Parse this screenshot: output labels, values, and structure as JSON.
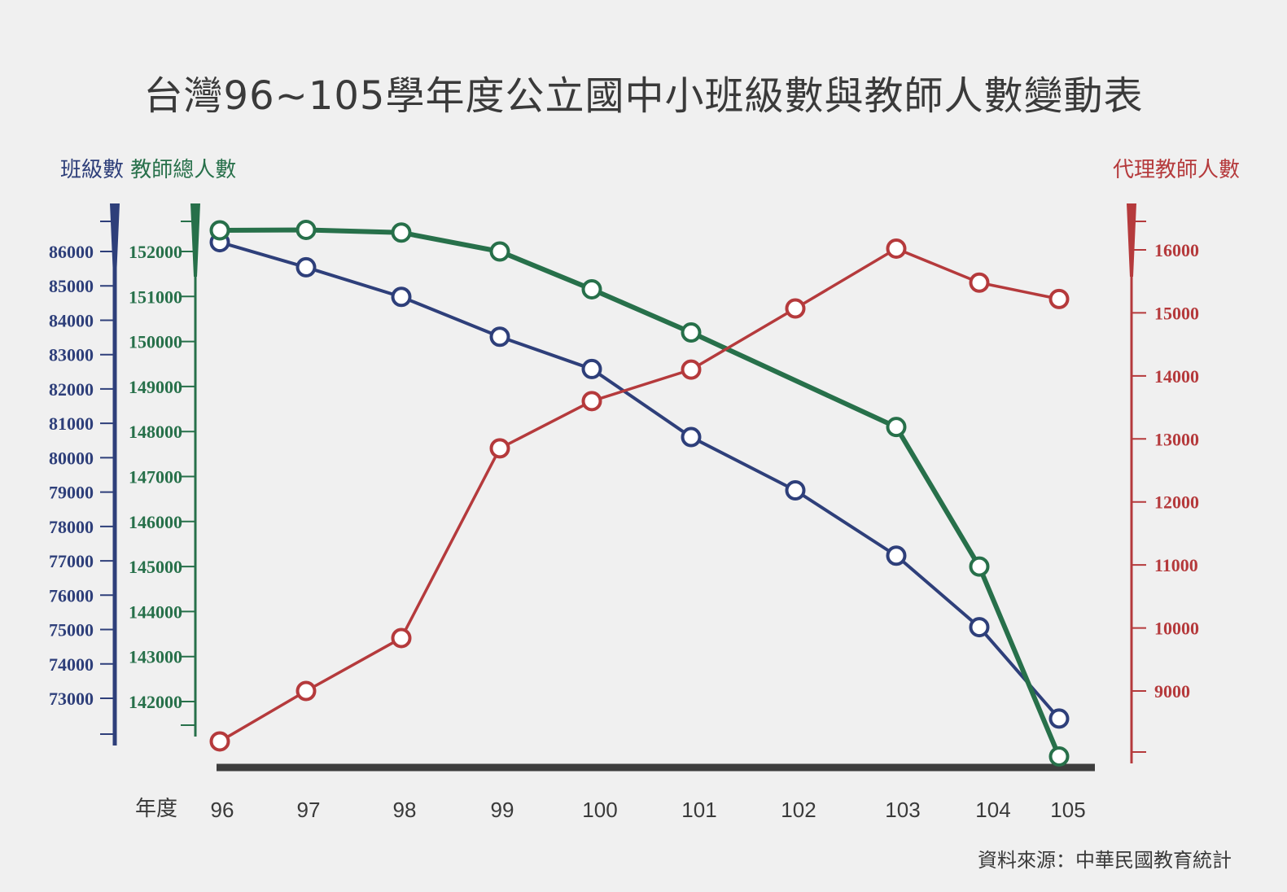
{
  "title": "台灣96~105學年度公立國中小班級數與教師人數變動表",
  "axis_titles": {
    "classes": "班級數",
    "teachers": "教師總人數",
    "substitute": "代理教師人數"
  },
  "x_axis_label": "年度",
  "source": "資料來源：中華民國教育統計",
  "colors": {
    "classes": "#2e3f7a",
    "teachers": "#27704a",
    "substitute": "#b53a3c",
    "baseline": "#3d3d3d",
    "background": "#f0f0f0"
  },
  "chart_data": {
    "type": "line",
    "title": "台灣96~105學年度公立國中小班級數與教師人數變動表",
    "xlabel": "年度",
    "categories": [
      "96",
      "97",
      "98",
      "99",
      "100",
      "101",
      "102",
      "103",
      "104",
      "105"
    ],
    "axes": {
      "classes": {
        "ylabel": "班級數",
        "ylim": [
          72000,
          86500
        ],
        "ticks": [
          86000,
          85000,
          84000,
          83000,
          82000,
          81000,
          80000,
          79000,
          78000,
          77000,
          76000,
          75000,
          74000,
          73000
        ]
      },
      "teachers": {
        "ylabel": "教師總人數",
        "ylim": [
          141300,
          152600
        ],
        "ticks": [
          152000,
          151000,
          150000,
          149000,
          148000,
          147000,
          146000,
          145000,
          144000,
          143000,
          142000
        ]
      },
      "substitute": {
        "ylabel": "代理教師人數",
        "ylim": [
          8200,
          16500
        ],
        "ticks": [
          16000,
          15000,
          14000,
          13000,
          12000,
          11000,
          10000,
          9000
        ]
      }
    },
    "series": [
      {
        "key": "classes",
        "name": "班級數",
        "axis": "classes",
        "values": [
          86270,
          85540,
          84680,
          83520,
          82580,
          80600,
          79050,
          77150,
          75070,
          72410
        ]
      },
      {
        "key": "teachers",
        "name": "教師總人數",
        "axis": "teachers",
        "values": [
          152470,
          152480,
          152420,
          152000,
          151160,
          150200,
          null,
          148100,
          145000,
          140780
        ]
      },
      {
        "key": "substitute",
        "name": "代理教師人數",
        "axis": "substitute",
        "values": [
          8200,
          9000,
          9840,
          12850,
          13600,
          14100,
          15070,
          16020,
          15480,
          15220
        ]
      }
    ]
  }
}
